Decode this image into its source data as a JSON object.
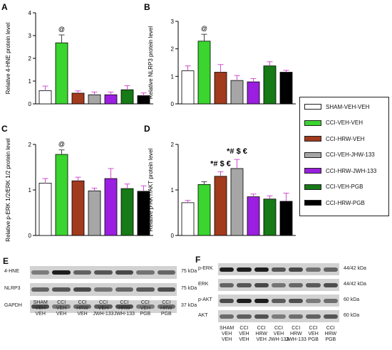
{
  "chart_data": [
    {
      "type": "bar",
      "panel": "A",
      "ylabel": "Relative 4-HNE protein level",
      "ylim": [
        0,
        4
      ],
      "yticks": [
        "0",
        "1",
        "2",
        "3",
        "4"
      ],
      "values": [
        0.58,
        2.68,
        0.47,
        0.4,
        0.4,
        0.62,
        0.36
      ],
      "errors": [
        0.2,
        0.35,
        0.1,
        0.12,
        0.12,
        0.18,
        0.12
      ],
      "annotations": [
        {
          "bar": 1,
          "text": "@"
        }
      ]
    },
    {
      "type": "bar",
      "panel": "B",
      "ylabel": "Relative NLRP3 protein level",
      "ylim": [
        0,
        3
      ],
      "yticks": [
        "0",
        "1",
        "2",
        "3"
      ],
      "values": [
        1.2,
        2.28,
        1.15,
        0.85,
        0.8,
        1.38,
        1.15
      ],
      "errors": [
        0.18,
        0.25,
        0.28,
        0.18,
        0.12,
        0.15,
        0.07
      ],
      "annotations": [
        {
          "bar": 1,
          "text": "@"
        }
      ]
    },
    {
      "type": "bar",
      "panel": "C",
      "ylabel": "Relative p-ERK 1/2/ERK 1/2 protein level",
      "ylim": [
        0,
        2
      ],
      "yticks": [
        "0",
        "1",
        "2"
      ],
      "values": [
        1.15,
        1.78,
        1.2,
        0.98,
        1.25,
        1.03,
        0.97
      ],
      "errors": [
        0.1,
        0.1,
        0.08,
        0.06,
        0.22,
        0.1,
        0.12
      ],
      "annotations": [
        {
          "bar": 1,
          "text": "@"
        }
      ]
    },
    {
      "type": "bar",
      "panel": "D",
      "ylabel": "Relative p-AKT/AKT protein level",
      "ylim": [
        0,
        2
      ],
      "yticks": [
        "0",
        "1",
        "2"
      ],
      "values": [
        0.72,
        1.12,
        1.3,
        1.47,
        0.85,
        0.8,
        0.75
      ],
      "errors": [
        0.05,
        0.06,
        0.1,
        0.2,
        0.06,
        0.07,
        0.18
      ],
      "annotations": [
        {
          "bar": 2,
          "text": "*# $ €"
        },
        {
          "bar": 3,
          "text": "*# $ €"
        }
      ]
    }
  ],
  "legend": [
    {
      "label": "SHAM-VEH-VEH",
      "color": "#ffffff"
    },
    {
      "label": "CCI-VEH-VEH",
      "color": "#3ad52e"
    },
    {
      "label": "CCI-HRW-VEH",
      "color": "#a23a1d"
    },
    {
      "label": "CCI-VEH-JHW-133",
      "color": "#a6a6a6"
    },
    {
      "label": "CCI-HRW-JWH-133",
      "color": "#9b1fe0"
    },
    {
      "label": "CCI-VEH-PGB",
      "color": "#167a16"
    },
    {
      "label": "CCI-HRW-PGB",
      "color": "#000000"
    }
  ],
  "blots": {
    "E": {
      "letter": "E",
      "rows": [
        {
          "label": "4-HNE",
          "kda": "75 kDa"
        },
        {
          "label": "NLRP3",
          "kda": "75 kDa"
        },
        {
          "label": "GAPDH",
          "kda": "37 kDa"
        }
      ],
      "lanes": [
        "SHAM\nVEH\nVEH",
        "CCI\nVEH\nVEH",
        "CCI\nHRW\nVEH",
        "CCI\nVEH\nJWH-133",
        "CCI\nHRW\nJWH-133",
        "CCI\nVEH\nPGB",
        "CCI\nHRW\nPGB"
      ]
    },
    "F": {
      "letter": "F",
      "rows": [
        {
          "label": "p-ERK",
          "kda": "44/42 kDa"
        },
        {
          "label": "ERK",
          "kda": "44/42 kDa"
        },
        {
          "label": "p-AKT",
          "kda": "60 kDa"
        },
        {
          "label": "AKT",
          "kda": "60 kDa"
        }
      ],
      "lanes": [
        "SHAM\nVEH\nVEH",
        "CCI\nVEH\nVEH",
        "CCI\nHRW\nVEH",
        "CCI\nVEH\nJWH-133",
        "CCI\nHRW\nJWH-133",
        "CCI\nVEH\nPGB",
        "CCI\nHRW\nPGB"
      ]
    }
  }
}
